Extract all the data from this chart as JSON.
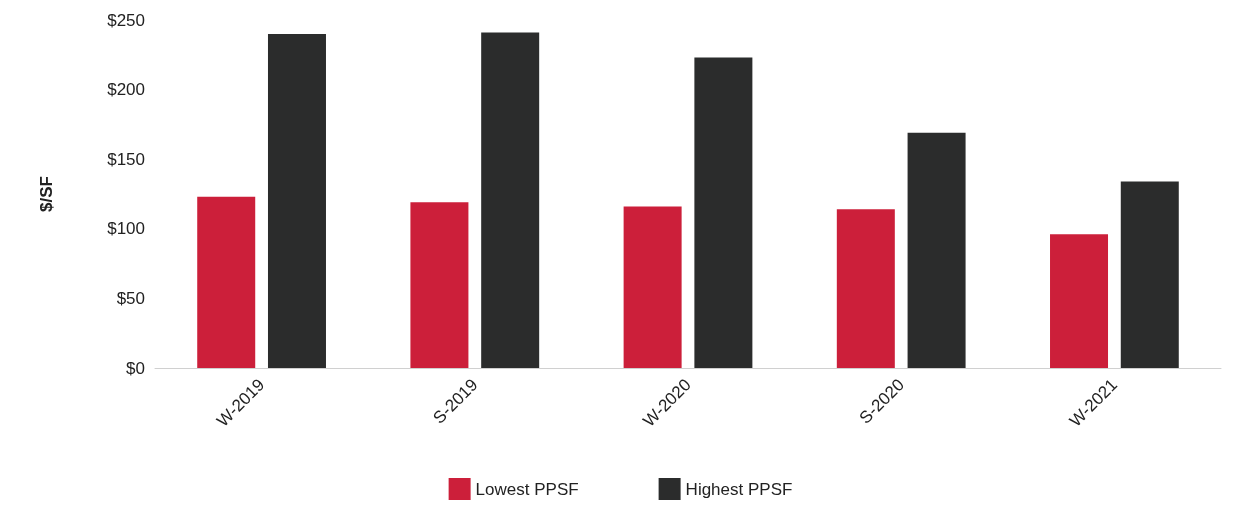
{
  "chart_data": {
    "type": "bar",
    "ylabel": "$/SF",
    "categories": [
      "W-2019",
      "S-2019",
      "W-2020",
      "S-2020",
      "W-2021"
    ],
    "series": [
      {
        "name": "Lowest PPSF",
        "color": "#cc1f3a",
        "values": [
          123,
          119,
          116,
          114,
          96
        ]
      },
      {
        "name": "Highest PPSF",
        "color": "#2b2c2c",
        "values": [
          240,
          241,
          223,
          169,
          134
        ]
      }
    ],
    "ylim": [
      0,
      250
    ],
    "yticks": [
      {
        "value": 0,
        "label": "$0"
      },
      {
        "value": 50,
        "label": "$50"
      },
      {
        "value": 100,
        "label": "$100"
      },
      {
        "value": 150,
        "label": "$150"
      },
      {
        "value": 200,
        "label": "$200"
      },
      {
        "value": 250,
        "label": "$250"
      }
    ],
    "grid": false,
    "legend": "bottom"
  }
}
